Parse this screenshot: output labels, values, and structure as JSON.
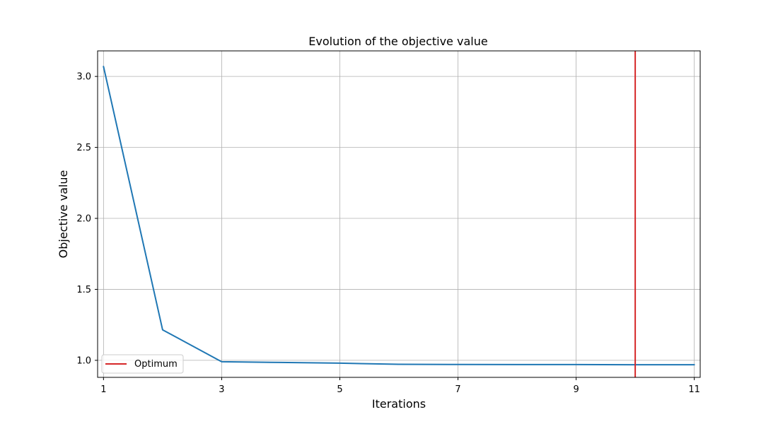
{
  "chart_data": {
    "type": "line",
    "title": "Evolution of the objective value",
    "xlabel": "Iterations",
    "ylabel": "Objective value",
    "xlim": [
      0.9,
      11.1
    ],
    "ylim": [
      0.88,
      3.18
    ],
    "xticks": [
      1,
      3,
      5,
      7,
      9,
      11
    ],
    "xtick_labels": [
      "1",
      "3",
      "5",
      "7",
      "9",
      "11"
    ],
    "yticks": [
      1.0,
      1.5,
      2.0,
      2.5,
      3.0
    ],
    "ytick_labels": [
      "1.0",
      "1.5",
      "2.0",
      "2.5",
      "3.0"
    ],
    "grid": true,
    "legend_placement": "lower-left",
    "series": [
      {
        "kind": "line",
        "color": "#1f77b4",
        "x": [
          1,
          2,
          3,
          4,
          5,
          6,
          7,
          8,
          9,
          10,
          11
        ],
        "y": [
          3.07,
          1.215,
          0.99,
          0.985,
          0.98,
          0.972,
          0.971,
          0.97,
          0.97,
          0.969,
          0.969
        ]
      }
    ],
    "vlines": [
      {
        "name": "Optimum",
        "x": 10,
        "color": "#d62728"
      }
    ]
  }
}
